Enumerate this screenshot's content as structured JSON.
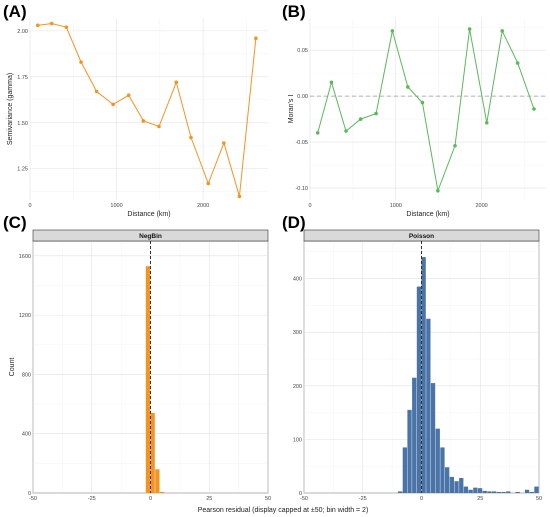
{
  "panel_labels": [
    "(A)",
    "(B)",
    "(C)",
    "(D)"
  ],
  "shared_xlabel_bottom": "Pearson residual (display capped at ±50; bin width = 2)",
  "chart_data": [
    {
      "type": "line",
      "panel": "(A)",
      "title": "",
      "xlabel": "Distance (km)",
      "ylabel": "Semivariance (gamma)",
      "xlim": [
        0,
        2750
      ],
      "ylim": [
        1.08,
        2.07
      ],
      "xticks": [
        0,
        1000,
        2000
      ],
      "yticks": [
        1.25,
        1.5,
        1.75,
        2.0
      ],
      "ytick_labels": [
        "1.25",
        "1.50",
        "1.75",
        "2.00"
      ],
      "color": "#f39422",
      "x": [
        90,
        250,
        420,
        590,
        770,
        960,
        1140,
        1310,
        1490,
        1690,
        1860,
        2060,
        2240,
        2420,
        2610
      ],
      "y": [
        2.03,
        2.04,
        2.02,
        1.83,
        1.67,
        1.6,
        1.65,
        1.51,
        1.48,
        1.72,
        1.42,
        1.17,
        1.39,
        1.1,
        1.96
      ]
    },
    {
      "type": "line",
      "panel": "(B)",
      "title": "",
      "xlabel": "Distance (km)",
      "ylabel": "Moran's I",
      "xlim": [
        0,
        2750
      ],
      "ylim": [
        -0.113,
        0.085
      ],
      "xticks": [
        0,
        1000,
        2000
      ],
      "yticks": [
        -0.1,
        -0.05,
        0.0,
        0.05
      ],
      "ytick_labels": [
        "-0.10",
        "-0.05",
        "0.00",
        "0.05"
      ],
      "reference_line": 0,
      "color": "#5cb85c",
      "x": [
        90,
        250,
        420,
        590,
        770,
        960,
        1140,
        1310,
        1490,
        1690,
        1860,
        2060,
        2240,
        2420,
        2610
      ],
      "y": [
        -0.04,
        0.015,
        -0.038,
        -0.025,
        -0.019,
        0.071,
        0.01,
        -0.007,
        -0.103,
        -0.054,
        0.073,
        -0.029,
        0.071,
        0.036,
        -0.014
      ]
    },
    {
      "type": "bar",
      "panel": "(C)",
      "strip": "NegBin",
      "xlabel": "",
      "ylabel": "Count",
      "xlim": [
        -50,
        50
      ],
      "ylim": [
        0,
        1700
      ],
      "xticks": [
        -50,
        -25,
        0,
        25,
        50
      ],
      "yticks": [
        0,
        400,
        800,
        1200,
        1600
      ],
      "bin_width": 2,
      "reference_line": 0,
      "color": "#f39422",
      "bins": [
        {
          "x": -1,
          "count": 1530
        },
        {
          "x": 1,
          "count": 540
        },
        {
          "x": 3,
          "count": 160
        },
        {
          "x": 5,
          "count": 8
        }
      ]
    },
    {
      "type": "bar",
      "panel": "(D)",
      "strip": "Poisson",
      "xlabel": "",
      "ylabel": "",
      "xlim": [
        -50,
        50
      ],
      "ylim": [
        0,
        470
      ],
      "xticks": [
        -50,
        -25,
        0,
        25,
        50
      ],
      "yticks": [
        0,
        100,
        200,
        300,
        400
      ],
      "bin_width": 2,
      "reference_line": 0,
      "color": "#4a74a8",
      "bins": [
        {
          "x": -9,
          "count": 3
        },
        {
          "x": -7,
          "count": 85
        },
        {
          "x": -5,
          "count": 155
        },
        {
          "x": -3,
          "count": 215
        },
        {
          "x": -1,
          "count": 385
        },
        {
          "x": 1,
          "count": 440
        },
        {
          "x": 3,
          "count": 325
        },
        {
          "x": 5,
          "count": 205
        },
        {
          "x": 7,
          "count": 120
        },
        {
          "x": 9,
          "count": 85
        },
        {
          "x": 11,
          "count": 48
        },
        {
          "x": 13,
          "count": 30
        },
        {
          "x": 15,
          "count": 22
        },
        {
          "x": 17,
          "count": 28
        },
        {
          "x": 19,
          "count": 12
        },
        {
          "x": 21,
          "count": 6
        },
        {
          "x": 23,
          "count": 10
        },
        {
          "x": 25,
          "count": 9
        },
        {
          "x": 27,
          "count": 4
        },
        {
          "x": 29,
          "count": 3
        },
        {
          "x": 31,
          "count": 3
        },
        {
          "x": 33,
          "count": 2
        },
        {
          "x": 35,
          "count": 2
        },
        {
          "x": 37,
          "count": 3
        },
        {
          "x": 41,
          "count": 2
        },
        {
          "x": 45,
          "count": 6
        },
        {
          "x": 47,
          "count": 2
        },
        {
          "x": 49,
          "count": 12
        }
      ]
    }
  ]
}
